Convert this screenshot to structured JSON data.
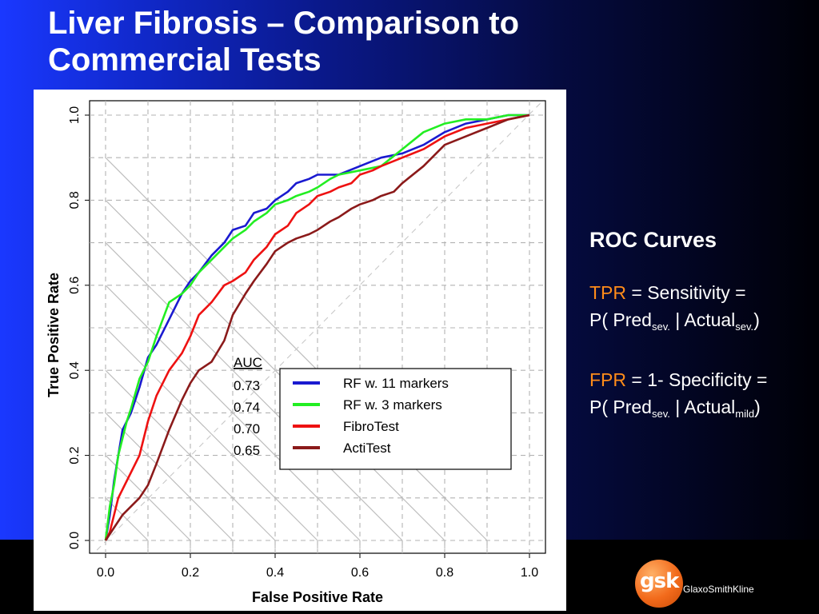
{
  "slide": {
    "title_line1": "Liver Fibrosis – Comparison to",
    "title_line2": "Commercial Tests",
    "colors": {
      "background_left": "#1a38ff",
      "background_right": "#000006",
      "accent": "#ff8c1a"
    }
  },
  "side_panel": {
    "heading": "ROC Curves",
    "tpr_key": "TPR",
    "tpr_def": " = Sensitivity =",
    "tpr_formula_a": "P( Pred",
    "tpr_sub1": "sev.",
    "tpr_formula_b": " | Actual",
    "tpr_sub2": "sev.",
    "tpr_formula_c": ")",
    "fpr_key": "FPR",
    "fpr_def": " = 1- Specificity =",
    "fpr_formula_a": " P( Pred",
    "fpr_sub1": "sev.",
    "fpr_formula_b": " | Actual",
    "fpr_sub2": "mild",
    "fpr_formula_c": ")"
  },
  "logo": {
    "mark": "gsk",
    "name": "GlaxoSmithKline"
  },
  "chart_data": {
    "type": "line",
    "xlabel": "False Positive Rate",
    "ylabel": "True Positive Rate",
    "xlim": [
      0,
      1
    ],
    "ylim": [
      0,
      1
    ],
    "x_ticks": [
      "0.0",
      "0.2",
      "0.4",
      "0.6",
      "0.8",
      "1.0"
    ],
    "y_ticks": [
      "0.0",
      "0.2",
      "0.4",
      "0.6",
      "0.8",
      "1.0"
    ],
    "grid": true,
    "diagonal_reference": true,
    "auc_header": "AUC",
    "legend_position": "center-right",
    "series": [
      {
        "name": "RF w. 11 markers",
        "auc": "0.73",
        "color": "#1a1ad0",
        "x": [
          0,
          0.01,
          0.015,
          0.02,
          0.03,
          0.04,
          0.05,
          0.06,
          0.08,
          0.1,
          0.12,
          0.15,
          0.18,
          0.2,
          0.22,
          0.25,
          0.28,
          0.3,
          0.33,
          0.35,
          0.38,
          0.4,
          0.43,
          0.45,
          0.48,
          0.5,
          0.53,
          0.55,
          0.6,
          0.65,
          0.7,
          0.75,
          0.8,
          0.85,
          0.9,
          0.95,
          1
        ],
        "y": [
          0,
          0.06,
          0.1,
          0.14,
          0.2,
          0.26,
          0.28,
          0.3,
          0.36,
          0.43,
          0.46,
          0.52,
          0.58,
          0.61,
          0.63,
          0.67,
          0.7,
          0.73,
          0.74,
          0.77,
          0.78,
          0.8,
          0.82,
          0.84,
          0.85,
          0.86,
          0.86,
          0.86,
          0.88,
          0.9,
          0.91,
          0.93,
          0.96,
          0.98,
          0.99,
          1.0,
          1.0
        ]
      },
      {
        "name": "RF w. 3 markers",
        "auc": "0.74",
        "color": "#22ee22",
        "x": [
          0,
          0.01,
          0.02,
          0.03,
          0.04,
          0.05,
          0.06,
          0.08,
          0.1,
          0.12,
          0.15,
          0.18,
          0.2,
          0.22,
          0.25,
          0.28,
          0.3,
          0.33,
          0.35,
          0.38,
          0.4,
          0.43,
          0.45,
          0.48,
          0.5,
          0.53,
          0.55,
          0.6,
          0.65,
          0.7,
          0.75,
          0.8,
          0.85,
          0.9,
          0.95,
          1
        ],
        "y": [
          0,
          0.08,
          0.13,
          0.2,
          0.24,
          0.28,
          0.31,
          0.38,
          0.42,
          0.48,
          0.56,
          0.58,
          0.6,
          0.63,
          0.66,
          0.69,
          0.71,
          0.73,
          0.75,
          0.77,
          0.79,
          0.8,
          0.81,
          0.82,
          0.83,
          0.85,
          0.86,
          0.87,
          0.88,
          0.92,
          0.96,
          0.98,
          0.99,
          0.99,
          1.0,
          1.0
        ]
      },
      {
        "name": "FibroTest",
        "auc": "0.70",
        "color": "#ee1111",
        "x": [
          0,
          0.01,
          0.02,
          0.03,
          0.05,
          0.08,
          0.1,
          0.12,
          0.15,
          0.18,
          0.2,
          0.22,
          0.25,
          0.28,
          0.3,
          0.33,
          0.35,
          0.38,
          0.4,
          0.43,
          0.45,
          0.48,
          0.5,
          0.53,
          0.55,
          0.58,
          0.6,
          0.63,
          0.65,
          0.7,
          0.75,
          0.8,
          0.85,
          0.9,
          0.95,
          1
        ],
        "y": [
          0,
          0.02,
          0.06,
          0.1,
          0.14,
          0.2,
          0.28,
          0.34,
          0.4,
          0.44,
          0.48,
          0.53,
          0.56,
          0.6,
          0.61,
          0.63,
          0.66,
          0.69,
          0.72,
          0.74,
          0.77,
          0.79,
          0.81,
          0.82,
          0.83,
          0.84,
          0.86,
          0.87,
          0.88,
          0.9,
          0.92,
          0.95,
          0.97,
          0.98,
          0.99,
          1.0
        ]
      },
      {
        "name": "ActiTest",
        "auc": "0.65",
        "color": "#8b1a1a",
        "x": [
          0,
          0.02,
          0.04,
          0.06,
          0.08,
          0.1,
          0.12,
          0.15,
          0.18,
          0.2,
          0.22,
          0.25,
          0.28,
          0.3,
          0.33,
          0.35,
          0.38,
          0.4,
          0.43,
          0.45,
          0.48,
          0.5,
          0.53,
          0.55,
          0.58,
          0.6,
          0.63,
          0.65,
          0.68,
          0.7,
          0.75,
          0.8,
          0.85,
          0.9,
          0.95,
          1
        ],
        "y": [
          0,
          0.03,
          0.06,
          0.08,
          0.1,
          0.13,
          0.18,
          0.26,
          0.33,
          0.37,
          0.4,
          0.42,
          0.47,
          0.53,
          0.58,
          0.61,
          0.65,
          0.68,
          0.7,
          0.71,
          0.72,
          0.73,
          0.75,
          0.76,
          0.78,
          0.79,
          0.8,
          0.81,
          0.82,
          0.84,
          0.88,
          0.93,
          0.95,
          0.97,
          0.99,
          1.0
        ]
      }
    ]
  }
}
